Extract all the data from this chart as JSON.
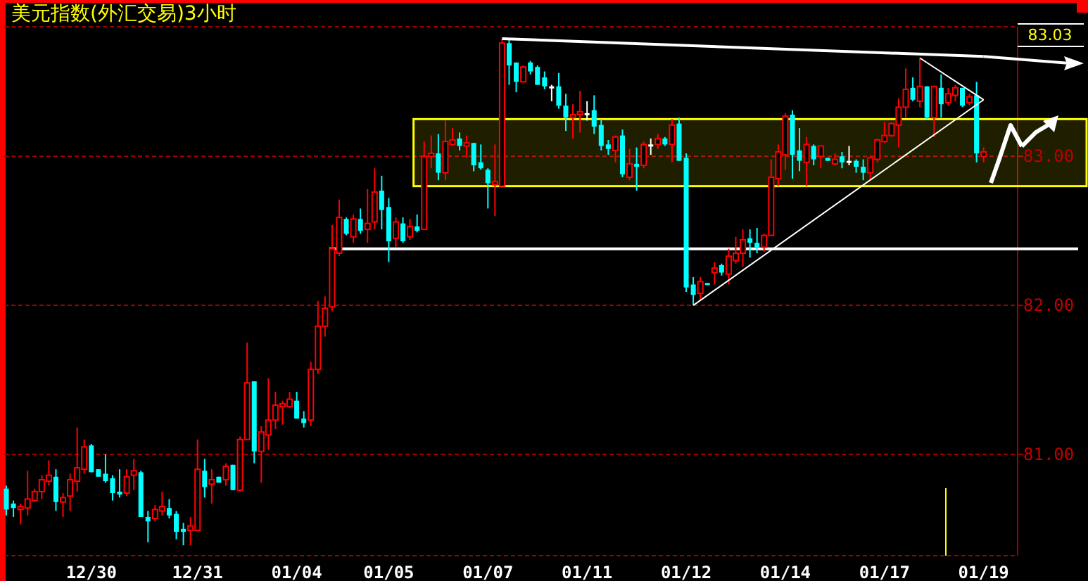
{
  "chart_data": {
    "type": "candlestick",
    "title": "美元指数(外汇交易)3小时",
    "categories": [
      null,
      null,
      null,
      null,
      null,
      null,
      null,
      null,
      null,
      null,
      null,
      null,
      "12/30",
      null,
      null,
      null,
      null,
      null,
      null,
      null,
      null,
      null,
      null,
      null,
      null,
      null,
      null,
      "12/31",
      null,
      null,
      null,
      null,
      null,
      null,
      null,
      null,
      null,
      null,
      null,
      null,
      null,
      "01/04",
      null,
      null,
      null,
      null,
      null,
      null,
      null,
      null,
      null,
      null,
      null,
      null,
      "01/05",
      null,
      null,
      null,
      null,
      null,
      null,
      null,
      null,
      null,
      null,
      null,
      null,
      null,
      "01/07",
      null,
      null,
      null,
      null,
      null,
      null,
      null,
      null,
      null,
      null,
      null,
      null,
      null,
      "01/11",
      null,
      null,
      null,
      null,
      null,
      null,
      null,
      null,
      null,
      null,
      null,
      null,
      null,
      "01/12",
      null,
      null,
      null,
      null,
      null,
      null,
      null,
      null,
      null,
      null,
      null,
      null,
      null,
      "01/14",
      null,
      null,
      null,
      null,
      null,
      null,
      null,
      null,
      null,
      null,
      null,
      null,
      null,
      "01/17",
      null,
      null,
      null,
      null,
      null,
      null,
      null,
      null,
      null,
      null,
      null,
      null,
      null,
      "01/19"
    ],
    "ohlc": [
      [
        80.77,
        80.79,
        80.59,
        80.63
      ],
      [
        80.67,
        80.69,
        80.58,
        80.64
      ],
      [
        80.63,
        80.67,
        80.53,
        80.65
      ],
      [
        80.64,
        80.89,
        80.59,
        80.7
      ],
      [
        80.69,
        80.77,
        80.68,
        80.75
      ],
      [
        80.75,
        80.86,
        80.7,
        80.83
      ],
      [
        80.82,
        80.96,
        80.79,
        80.86
      ],
      [
        80.85,
        80.9,
        80.62,
        80.68
      ],
      [
        80.68,
        80.74,
        80.58,
        80.71
      ],
      [
        80.72,
        80.87,
        80.62,
        80.83
      ],
      [
        80.82,
        81.18,
        80.75,
        80.91
      ],
      [
        80.9,
        81.1,
        80.87,
        81.05
      ],
      [
        81.06,
        81.07,
        80.88,
        80.88
      ],
      [
        80.9,
        80.9,
        80.85,
        80.85
      ],
      [
        80.87,
        81.0,
        80.81,
        80.82
      ],
      [
        80.84,
        80.86,
        80.69,
        80.74
      ],
      [
        80.75,
        80.9,
        80.71,
        80.73
      ],
      [
        80.74,
        80.9,
        80.72,
        80.85
      ],
      [
        80.86,
        80.97,
        80.76,
        80.89
      ],
      [
        80.88,
        80.89,
        80.58,
        80.58
      ],
      [
        80.58,
        80.62,
        80.41,
        80.55
      ],
      [
        80.57,
        80.66,
        80.55,
        80.63
      ],
      [
        80.62,
        80.75,
        80.59,
        80.65
      ],
      [
        80.64,
        80.7,
        80.57,
        80.59
      ],
      [
        80.6,
        80.62,
        80.43,
        80.48
      ],
      [
        80.5,
        80.54,
        80.39,
        80.48
      ],
      [
        80.49,
        80.58,
        80.39,
        80.52
      ],
      [
        80.49,
        81.1,
        80.49,
        80.9
      ],
      [
        80.89,
        80.97,
        80.71,
        80.78
      ],
      [
        80.8,
        80.9,
        80.67,
        80.83
      ],
      [
        80.85,
        80.85,
        80.81,
        80.81
      ],
      [
        80.83,
        80.94,
        80.79,
        80.92
      ],
      [
        80.93,
        80.93,
        80.76,
        80.76
      ],
      [
        80.76,
        81.12,
        80.75,
        81.1
      ],
      [
        81.1,
        81.75,
        81.1,
        81.48
      ],
      [
        81.49,
        81.49,
        80.94,
        81.02
      ],
      [
        81.02,
        81.19,
        80.81,
        81.15
      ],
      [
        81.13,
        81.51,
        81.03,
        81.23
      ],
      [
        81.23,
        81.42,
        81.17,
        81.33
      ],
      [
        81.32,
        81.36,
        81.2,
        81.34
      ],
      [
        81.32,
        81.42,
        81.31,
        81.37
      ],
      [
        81.36,
        81.42,
        81.24,
        81.24
      ],
      [
        81.24,
        81.29,
        81.18,
        81.21
      ],
      [
        81.23,
        81.62,
        81.19,
        81.57
      ],
      [
        81.57,
        82.03,
        81.54,
        81.86
      ],
      [
        81.86,
        82.06,
        81.79,
        81.98
      ],
      [
        81.99,
        82.54,
        81.96,
        82.38
      ],
      [
        82.35,
        82.71,
        82.33,
        82.59
      ],
      [
        82.58,
        82.59,
        82.47,
        82.48
      ],
      [
        82.46,
        82.61,
        82.42,
        82.58
      ],
      [
        82.58,
        82.65,
        82.48,
        82.5
      ],
      [
        82.51,
        82.78,
        82.42,
        82.55
      ],
      [
        82.56,
        82.92,
        82.51,
        82.76
      ],
      [
        82.77,
        82.87,
        82.51,
        82.64
      ],
      [
        82.66,
        82.72,
        82.29,
        82.43
      ],
      [
        82.45,
        82.59,
        82.39,
        82.56
      ],
      [
        82.55,
        82.59,
        82.42,
        82.43
      ],
      [
        82.46,
        82.58,
        82.44,
        82.53
      ],
      [
        82.53,
        82.61,
        82.49,
        82.5
      ],
      [
        82.51,
        83.1,
        82.51,
        83.0
      ],
      [
        83.0,
        83.14,
        82.92,
        83.02
      ],
      [
        83.02,
        83.15,
        82.84,
        82.89
      ],
      [
        82.89,
        83.24,
        82.84,
        83.1
      ],
      [
        83.08,
        83.19,
        83.07,
        83.11
      ],
      [
        83.12,
        83.16,
        83.04,
        83.07
      ],
      [
        83.07,
        83.14,
        82.99,
        83.09
      ],
      [
        83.09,
        83.09,
        82.9,
        82.94
      ],
      [
        82.96,
        83.08,
        82.91,
        82.92
      ],
      [
        82.91,
        82.92,
        82.65,
        82.82
      ],
      [
        82.81,
        83.08,
        82.6,
        82.83
      ],
      [
        82.8,
        83.79,
        82.8,
        83.76
      ],
      [
        83.76,
        83.78,
        83.48,
        83.61
      ],
      [
        83.63,
        83.63,
        83.43,
        83.5
      ],
      [
        83.5,
        83.61,
        83.5,
        83.6
      ],
      [
        83.63,
        83.64,
        83.55,
        83.57
      ],
      [
        83.6,
        83.61,
        83.48,
        83.48
      ],
      [
        83.53,
        83.57,
        83.45,
        83.47
      ],
      [
        83.47,
        83.48,
        83.37,
        83.47
      ],
      [
        83.47,
        83.56,
        83.32,
        83.34
      ],
      [
        83.34,
        83.42,
        83.17,
        83.26
      ],
      [
        83.26,
        83.35,
        83.12,
        83.28
      ],
      [
        83.28,
        83.44,
        83.16,
        83.3
      ],
      [
        83.29,
        83.37,
        83.24,
        83.29
      ],
      [
        83.31,
        83.41,
        83.15,
        83.2
      ],
      [
        83.21,
        83.25,
        83.04,
        83.07
      ],
      [
        83.08,
        83.11,
        83.01,
        83.05
      ],
      [
        83.04,
        83.14,
        82.96,
        83.13
      ],
      [
        83.14,
        83.18,
        82.86,
        82.88
      ],
      [
        82.86,
        83.05,
        82.84,
        82.95
      ],
      [
        82.95,
        83.06,
        82.77,
        82.93
      ],
      [
        82.94,
        83.1,
        82.92,
        83.08
      ],
      [
        83.08,
        83.12,
        83.01,
        83.08
      ],
      [
        83.08,
        83.15,
        83.05,
        83.12
      ],
      [
        83.12,
        83.13,
        83.07,
        83.08
      ],
      [
        83.08,
        83.25,
        82.96,
        83.21
      ],
      [
        83.22,
        83.26,
        82.97,
        82.97
      ],
      [
        82.99,
        83.02,
        82.09,
        82.12
      ],
      [
        82.14,
        82.19,
        82.0,
        82.07
      ],
      [
        82.08,
        82.19,
        82.04,
        82.16
      ],
      [
        82.15,
        82.15,
        82.14,
        82.14
      ],
      [
        82.22,
        82.29,
        82.14,
        82.25
      ],
      [
        82.27,
        82.28,
        82.2,
        82.22
      ],
      [
        82.21,
        82.38,
        82.14,
        82.33
      ],
      [
        82.3,
        82.46,
        82.28,
        82.35
      ],
      [
        82.35,
        82.51,
        82.26,
        82.44
      ],
      [
        82.45,
        82.51,
        82.32,
        82.42
      ],
      [
        82.42,
        82.52,
        82.35,
        82.39
      ],
      [
        82.39,
        82.48,
        82.36,
        82.47
      ],
      [
        82.47,
        82.98,
        82.47,
        82.86
      ],
      [
        82.85,
        83.08,
        82.8,
        83.03
      ],
      [
        83.01,
        83.29,
        82.91,
        83.27
      ],
      [
        83.28,
        83.31,
        82.85,
        83.01
      ],
      [
        83.04,
        83.19,
        82.9,
        82.97
      ],
      [
        82.96,
        83.13,
        82.8,
        83.08
      ],
      [
        83.07,
        83.08,
        82.94,
        82.98
      ],
      [
        83.0,
        83.07,
        82.92,
        83.07
      ],
      [
        82.99,
        82.99,
        82.97,
        82.97
      ],
      [
        82.95,
        83.02,
        82.94,
        82.98
      ],
      [
        83.0,
        83.03,
        82.92,
        82.96
      ],
      [
        82.97,
        83.07,
        82.94,
        82.97
      ],
      [
        82.97,
        82.98,
        82.89,
        82.93
      ],
      [
        82.93,
        82.98,
        82.84,
        82.89
      ],
      [
        82.89,
        83.0,
        82.84,
        82.99
      ],
      [
        82.98,
        83.12,
        82.96,
        83.11
      ],
      [
        83.1,
        83.23,
        83.09,
        83.14
      ],
      [
        83.14,
        83.23,
        83.13,
        83.22
      ],
      [
        83.21,
        83.39,
        83.06,
        83.33
      ],
      [
        83.33,
        83.59,
        83.26,
        83.45
      ],
      [
        83.46,
        83.53,
        83.37,
        83.38
      ],
      [
        83.37,
        83.66,
        83.33,
        83.47
      ],
      [
        83.47,
        83.47,
        83.25,
        83.26
      ],
      [
        83.26,
        83.47,
        83.13,
        83.47
      ],
      [
        83.46,
        83.55,
        83.26,
        83.35
      ],
      [
        83.36,
        83.46,
        83.34,
        83.42
      ],
      [
        83.41,
        83.48,
        83.37,
        83.46
      ],
      [
        83.46,
        83.46,
        83.33,
        83.34
      ],
      [
        83.36,
        83.42,
        83.34,
        83.4
      ],
      [
        83.41,
        83.5,
        82.96,
        83.02
      ],
      [
        83.0,
        83.06,
        82.96,
        83.03
      ]
    ],
    "series": [
      {
        "type": "line",
        "color": "#ffffff",
        "values": [
          null,
          null,
          null,
          null,
          null,
          null,
          null,
          null,
          null,
          null,
          null,
          null,
          null,
          null,
          null,
          null,
          null,
          null,
          null,
          null,
          null,
          null,
          null,
          null,
          null,
          null,
          null,
          null,
          null,
          null,
          null,
          null,
          null,
          null,
          null,
          null,
          null,
          null,
          null,
          null,
          null,
          null,
          null,
          null,
          null,
          null,
          null,
          null,
          null,
          null,
          null,
          null,
          null,
          null,
          null,
          null,
          null,
          null,
          null,
          null,
          null,
          null,
          null,
          null,
          null,
          null,
          null,
          null,
          null,
          null,
          83.79,
          null,
          null,
          null,
          null,
          null,
          null,
          null,
          null,
          null,
          null,
          null,
          null,
          null,
          null,
          null,
          null,
          null,
          null,
          null,
          null,
          null,
          null,
          null,
          null,
          null,
          null,
          null,
          null,
          null,
          null,
          null,
          null,
          null,
          null,
          null,
          null,
          null,
          null,
          null,
          null,
          null,
          null,
          null,
          null,
          null,
          null,
          null,
          null,
          null,
          null,
          null,
          null,
          null,
          null,
          null,
          null,
          null,
          null,
          null,
          null,
          null,
          null,
          null,
          null,
          null,
          null,
          null,
          83.67
        ]
      },
      {
        "type": "line",
        "color": "#ffffff",
        "values": [
          null,
          null,
          null,
          null,
          null,
          null,
          null,
          null,
          null,
          null,
          null,
          null,
          null,
          null,
          null,
          null,
          null,
          null,
          null,
          null,
          null,
          null,
          null,
          null,
          null,
          null,
          null,
          null,
          null,
          null,
          null,
          null,
          null,
          null,
          null,
          null,
          null,
          null,
          null,
          null,
          null,
          null,
          null,
          null,
          null,
          null,
          null,
          null,
          null,
          null,
          null,
          null,
          null,
          null,
          null,
          null,
          null,
          null,
          null,
          null,
          null,
          null,
          null,
          null,
          null,
          null,
          null,
          null,
          null,
          null,
          null,
          null,
          null,
          null,
          null,
          null,
          null,
          null,
          null,
          null,
          null,
          null,
          null,
          null,
          null,
          null,
          null,
          null,
          null,
          null,
          null,
          null,
          null,
          null,
          null,
          null,
          null,
          82.0,
          null,
          null,
          null,
          null,
          null,
          null,
          null,
          null,
          null,
          null,
          null,
          null,
          null,
          null,
          null,
          null,
          null,
          null,
          null,
          null,
          null,
          null,
          null,
          null,
          null,
          null,
          null,
          null,
          null,
          null,
          null,
          null,
          null,
          null,
          null,
          null,
          null,
          null,
          null,
          null,
          83.38
        ]
      },
      {
        "type": "line",
        "color": "#ffffff",
        "values": [
          null,
          null,
          null,
          null,
          null,
          null,
          null,
          null,
          null,
          null,
          null,
          null,
          null,
          null,
          null,
          null,
          null,
          null,
          null,
          null,
          null,
          null,
          null,
          null,
          null,
          null,
          null,
          null,
          null,
          null,
          null,
          null,
          null,
          null,
          null,
          null,
          null,
          null,
          null,
          null,
          null,
          null,
          null,
          null,
          null,
          null,
          null,
          null,
          null,
          null,
          null,
          null,
          null,
          null,
          null,
          null,
          null,
          null,
          null,
          null,
          null,
          null,
          null,
          null,
          null,
          null,
          null,
          null,
          null,
          null,
          null,
          null,
          null,
          null,
          null,
          null,
          null,
          null,
          null,
          null,
          null,
          null,
          null,
          null,
          null,
          null,
          null,
          null,
          null,
          null,
          null,
          null,
          null,
          null,
          null,
          null,
          null,
          null,
          null,
          null,
          null,
          null,
          null,
          null,
          null,
          null,
          null,
          null,
          null,
          null,
          null,
          null,
          null,
          null,
          null,
          null,
          null,
          null,
          null,
          null,
          null,
          null,
          null,
          null,
          null,
          null,
          null,
          null,
          null,
          83.66,
          null,
          null,
          null,
          null,
          null,
          null,
          null,
          null,
          83.38
        ]
      }
    ],
    "ylim": [
      80.32,
      83.87
    ],
    "yticks": [
      {
        "value": 81,
        "label": "81.00"
      },
      {
        "value": 82,
        "label": "82.00"
      },
      {
        "value": 83,
        "label": "83.00"
      }
    ],
    "grid": "y",
    "ref_lines": [
      {
        "axis": "y",
        "value": 82.38,
        "color": "#ffffff"
      }
    ],
    "bands": [
      {
        "axis": "y",
        "from": 82.8,
        "to": 83.25,
        "color": "#ffff00"
      }
    ],
    "annotations": [
      "83.03"
    ]
  }
}
